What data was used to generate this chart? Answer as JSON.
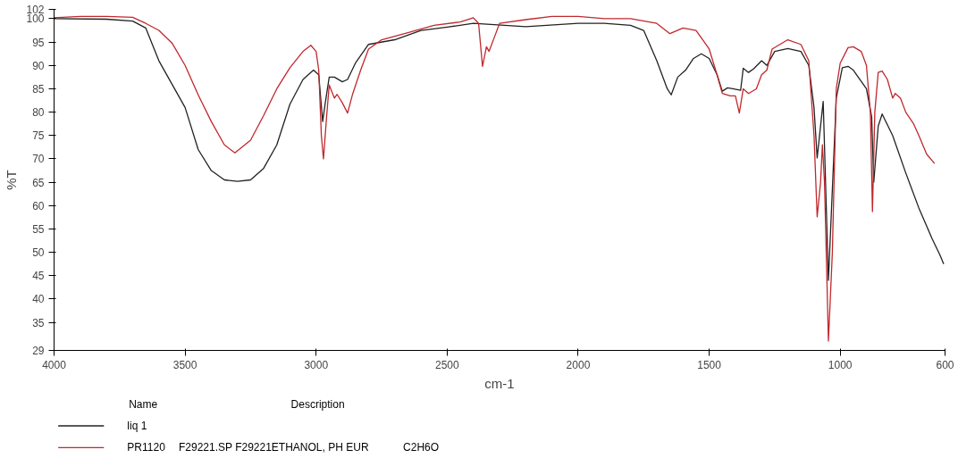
{
  "chart_data": {
    "type": "line",
    "xlabel": "cm-1",
    "ylabel": "%T",
    "xlim": [
      4000,
      600
    ],
    "ylim": [
      29,
      102
    ],
    "xticks": [
      4000,
      3500,
      3000,
      2500,
      2000,
      1500,
      1000,
      600
    ],
    "yticks": [
      29,
      35,
      40,
      45,
      50,
      55,
      60,
      65,
      70,
      75,
      80,
      85,
      90,
      95,
      100,
      102
    ],
    "grid": false,
    "legend": "bottom",
    "legend_title": "Name",
    "line_style": "solid",
    "marker": "none",
    "annotations": [
      "Description",
      "F29221.SP F29221ETHANOL, PH EUR",
      "C2H6O"
    ],
    "series": [
      {
        "name": "liq 1",
        "color": "#222222",
        "x": [
          4000,
          3800,
          3700,
          3650,
          3600,
          3500,
          3450,
          3400,
          3350,
          3300,
          3250,
          3200,
          3150,
          3100,
          3050,
          3010,
          2990,
          2975,
          2965,
          2950,
          2930,
          2900,
          2880,
          2850,
          2800,
          2700,
          2600,
          2500,
          2400,
          2200,
          2000,
          1900,
          1800,
          1750,
          1700,
          1660,
          1645,
          1620,
          1590,
          1560,
          1530,
          1500,
          1470,
          1450,
          1430,
          1410,
          1380,
          1370,
          1350,
          1330,
          1300,
          1280,
          1250,
          1200,
          1150,
          1120,
          1100,
          1088,
          1065,
          1045,
          1015,
          992,
          970,
          950,
          900,
          880,
          872,
          855,
          840,
          800,
          750,
          700,
          650,
          620,
          605
        ],
        "values": [
          100,
          99.9,
          99.5,
          98,
          91,
          81,
          72,
          67.5,
          65.5,
          65.2,
          65.5,
          68,
          73,
          81.7,
          87,
          89,
          88,
          78,
          82,
          87.5,
          87.5,
          86.5,
          87,
          90.5,
          94.5,
          95.5,
          97.5,
          98.2,
          99,
          98.3,
          99,
          99,
          98.6,
          97.5,
          91,
          85,
          83.7,
          87.5,
          89,
          91.5,
          92.5,
          91.5,
          88,
          84.5,
          85.2,
          85,
          84.7,
          89.4,
          88.5,
          89.3,
          91,
          90,
          93,
          93.6,
          93,
          90,
          81,
          70.2,
          82.3,
          44,
          83,
          89.5,
          89.8,
          89,
          85,
          79,
          65,
          77,
          79.6,
          75,
          67,
          59.5,
          53,
          49.5,
          47.5
        ]
      },
      {
        "name": "PR1120",
        "color": "#c0282d",
        "x": [
          4000,
          3900,
          3800,
          3700,
          3650,
          3600,
          3550,
          3500,
          3450,
          3400,
          3350,
          3310,
          3250,
          3200,
          3150,
          3100,
          3050,
          3020,
          3000,
          2990,
          2980,
          2972,
          2960,
          2950,
          2930,
          2920,
          2900,
          2880,
          2860,
          2830,
          2800,
          2750,
          2650,
          2550,
          2450,
          2400,
          2380,
          2365,
          2350,
          2340,
          2320,
          2300,
          2200,
          2100,
          2000,
          1900,
          1800,
          1700,
          1650,
          1600,
          1550,
          1500,
          1470,
          1450,
          1420,
          1400,
          1385,
          1370,
          1350,
          1320,
          1300,
          1280,
          1260,
          1200,
          1150,
          1120,
          1100,
          1088,
          1075,
          1068,
          1060,
          1045,
          1030,
          1015,
          1000,
          970,
          950,
          920,
          900,
          885,
          877,
          868,
          855,
          840,
          820,
          800,
          790,
          770,
          750,
          720,
          700,
          670,
          640
        ],
        "values": [
          100.2,
          100.5,
          100.5,
          100.3,
          99,
          97.5,
          94.8,
          90,
          83.7,
          78,
          73,
          71.3,
          74,
          79.3,
          85,
          89.5,
          93,
          94.3,
          93,
          89,
          75,
          70,
          79,
          85.8,
          83,
          83.8,
          82,
          79.8,
          84,
          89,
          93.5,
          95.5,
          97,
          98.6,
          99.3,
          100.2,
          99,
          89.8,
          94,
          93,
          96,
          99,
          99.8,
          100.5,
          100.5,
          100,
          100,
          99,
          96.8,
          98,
          97.5,
          93.5,
          88,
          84,
          83.5,
          83.5,
          79.8,
          85,
          84,
          85,
          88,
          89,
          93.5,
          95.5,
          94.5,
          91,
          75,
          57.6,
          65,
          73,
          65,
          31,
          50,
          85,
          90.5,
          93.8,
          94,
          93,
          90,
          80,
          58.7,
          80,
          88.5,
          88.8,
          87,
          83,
          84,
          83,
          80,
          77.5,
          75,
          71,
          69
        ]
      }
    ]
  }
}
